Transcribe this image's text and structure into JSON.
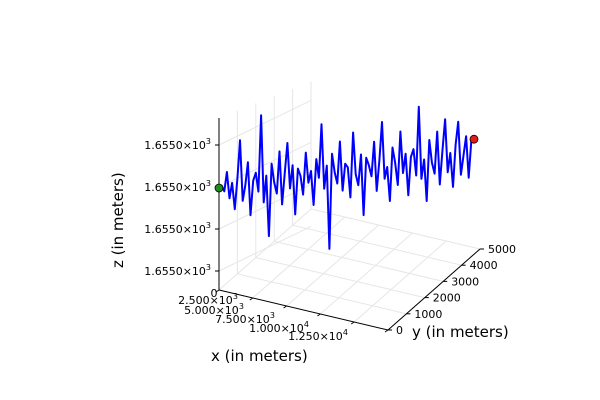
{
  "chart_data": {
    "type": "line3d",
    "xlabel": "x (in meters)",
    "ylabel": "y (in meters)",
    "zlabel": "z (in meters)",
    "x_tick_labels": [
      {
        "mant": "0",
        "exp": ""
      },
      {
        "mant": "2.500×10",
        "exp": "3"
      },
      {
        "mant": "5.000×10",
        "exp": "3"
      },
      {
        "mant": "7.500×10",
        "exp": "3"
      },
      {
        "mant": "1.000×10",
        "exp": "4"
      },
      {
        "mant": "1.250×10",
        "exp": "4"
      }
    ],
    "y_tick_labels": [
      "0",
      "1000",
      "2000",
      "3000",
      "4000",
      "5000"
    ],
    "z_tick_labels": [
      {
        "mant": "1.6550×10",
        "exp": "3"
      },
      {
        "mant": "1.6550×10",
        "exp": "3"
      },
      {
        "mant": "1.6550×10",
        "exp": "3"
      },
      {
        "mant": "1.6550×10",
        "exp": "3"
      }
    ],
    "grid": true,
    "legend": "none",
    "series_color": "#0000ff",
    "start_marker_color": "#1e8c1e",
    "end_marker_color": "#e31a1c",
    "path_start": {
      "y": 0,
      "z_offset": 0.0
    },
    "path_end": {
      "y": 5000,
      "z_offset": 0.6
    },
    "z_offsets_along_path": [
      0.0,
      0.05,
      -0.1,
      0.4,
      -0.3,
      0.1,
      -0.6,
      0.2,
      1.2,
      -0.4,
      0.0,
      0.6,
      -0.8,
      0.1,
      0.3,
      -0.2,
      1.8,
      -0.5,
      0.2,
      -1.4,
      0.5,
      0.0,
      -0.3,
      0.8,
      -0.6,
      0.2,
      1.0,
      -0.2,
      0.4,
      -0.9,
      0.3,
      0.1,
      -0.4,
      0.7,
      -0.1,
      0.2,
      -0.7,
      0.5,
      0.0,
      1.4,
      -0.3,
      0.3,
      -1.9,
      0.6,
      0.1,
      -0.2,
      0.9,
      -0.4,
      0.3,
      0.2,
      -0.6,
      1.1,
      0.0,
      -0.3,
      0.5,
      -1.1,
      0.4,
      0.2,
      -0.1,
      0.8,
      -0.5,
      0.3,
      1.3,
      -0.2,
      0.1,
      -0.8,
      0.6,
      0.2,
      -0.4,
      1.0,
      -0.1,
      0.4,
      -0.7,
      0.3,
      0.5,
      -0.2,
      1.6,
      -0.3,
      0.2,
      -0.9,
      0.7,
      0.1,
      -0.2,
      0.9,
      -0.5,
      0.4,
      1.2,
      -0.2,
      0.3,
      -0.6,
      0.5,
      1.1,
      -0.3,
      0.2,
      0.7,
      -0.4,
      0.6,
      0.6
    ]
  }
}
